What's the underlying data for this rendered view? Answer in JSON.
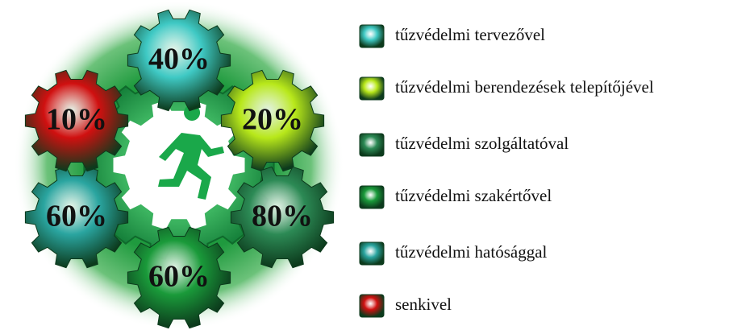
{
  "gears": [
    {
      "text": "40%",
      "color": "#3fc9c4"
    },
    {
      "text": "20%",
      "color": "#b8e81a"
    },
    {
      "text": "80%",
      "color": "#2c8a55"
    },
    {
      "text": "60%",
      "color": "#1a9a3a"
    },
    {
      "text": "60%",
      "color": "#2aa5a0"
    },
    {
      "text": "10%",
      "color": "#d01010"
    }
  ],
  "legend": [
    {
      "text": "tűzvédelmi tervezővel",
      "color": "#3fc9c4"
    },
    {
      "text": "tűzvédelmi berendezések telepítőjével",
      "color": "#b8e81a"
    },
    {
      "text": "tűzvédelmi szolgáltatóval",
      "color": "#2c8a55"
    },
    {
      "text": "tűzvédelmi szakértővel",
      "color": "#1a9a3a"
    },
    {
      "text": "tűzvédelmi hatósággal",
      "color": "#2aa5a0"
    },
    {
      "text": "senkivel",
      "color": "#d01010"
    }
  ]
}
